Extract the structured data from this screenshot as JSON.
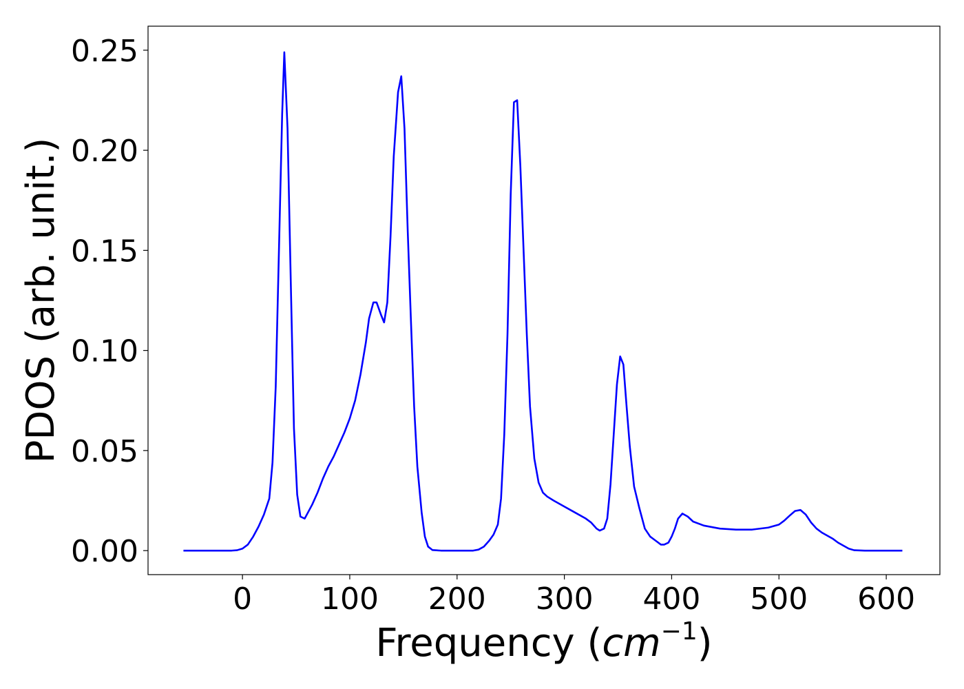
{
  "chart_data": {
    "type": "line",
    "title": "",
    "xlabel_main": "Frequency (",
    "xlabel_unit": "cm",
    "xlabel_exp": "−1",
    "xlabel_close": ")",
    "ylabel": "PDOS (arb. unit.)",
    "xlim": [
      -88,
      650
    ],
    "ylim": [
      -0.012,
      0.262
    ],
    "xticks": [
      0,
      100,
      200,
      300,
      400,
      500,
      600
    ],
    "xtick_labels": [
      "0",
      "100",
      "200",
      "300",
      "400",
      "500",
      "600"
    ],
    "yticks": [
      0.0,
      0.05,
      0.1,
      0.15,
      0.2,
      0.25
    ],
    "ytick_labels": [
      "0.00",
      "0.05",
      "0.10",
      "0.15",
      "0.20",
      "0.25"
    ],
    "grid": false,
    "legend": "none",
    "series": [
      {
        "color": "#0000ff",
        "x": [
          -55,
          -20,
          -10,
          -5,
          0,
          5,
          10,
          15,
          20,
          25,
          28,
          31,
          34,
          37,
          39,
          42,
          45,
          48,
          51,
          54,
          58,
          61,
          65,
          70,
          75,
          80,
          85,
          90,
          95,
          100,
          105,
          110,
          115,
          118,
          122,
          125,
          129,
          132,
          135,
          138,
          141,
          145,
          148,
          151,
          154,
          157,
          160,
          163,
          167,
          170,
          173,
          177,
          185,
          200,
          215,
          220,
          225,
          230,
          234,
          238,
          241,
          244,
          247,
          250,
          253,
          256,
          259,
          262,
          265,
          268,
          272,
          276,
          280,
          284,
          290,
          300,
          310,
          320,
          325,
          330,
          333,
          337,
          340,
          343,
          346,
          349,
          352,
          355,
          358,
          361,
          365,
          370,
          375,
          380,
          385,
          390,
          393,
          397,
          400,
          403,
          406,
          410,
          415,
          420,
          430,
          445,
          460,
          475,
          490,
          500,
          505,
          510,
          515,
          520,
          525,
          530,
          535,
          540,
          550,
          555,
          560,
          565,
          570,
          580,
          600,
          615
        ],
        "y": [
          0.0,
          0.0,
          0.0,
          0.0002,
          0.001,
          0.003,
          0.007,
          0.012,
          0.018,
          0.026,
          0.044,
          0.082,
          0.15,
          0.218,
          0.249,
          0.211,
          0.135,
          0.061,
          0.028,
          0.017,
          0.016,
          0.019,
          0.023,
          0.029,
          0.036,
          0.042,
          0.047,
          0.053,
          0.059,
          0.066,
          0.075,
          0.088,
          0.104,
          0.116,
          0.124,
          0.124,
          0.118,
          0.114,
          0.124,
          0.157,
          0.197,
          0.229,
          0.237,
          0.211,
          0.16,
          0.115,
          0.072,
          0.042,
          0.019,
          0.007,
          0.002,
          0.0003,
          0.0,
          0.0,
          0.0,
          0.0005,
          0.002,
          0.005,
          0.008,
          0.013,
          0.026,
          0.058,
          0.108,
          0.178,
          0.224,
          0.225,
          0.192,
          0.15,
          0.108,
          0.072,
          0.046,
          0.034,
          0.029,
          0.027,
          0.025,
          0.022,
          0.019,
          0.016,
          0.014,
          0.011,
          0.01,
          0.011,
          0.016,
          0.033,
          0.058,
          0.083,
          0.097,
          0.093,
          0.072,
          0.052,
          0.032,
          0.021,
          0.011,
          0.007,
          0.005,
          0.003,
          0.003,
          0.004,
          0.007,
          0.011,
          0.016,
          0.0185,
          0.017,
          0.0145,
          0.0125,
          0.011,
          0.0105,
          0.0105,
          0.0115,
          0.013,
          0.015,
          0.0175,
          0.0198,
          0.0203,
          0.018,
          0.014,
          0.011,
          0.009,
          0.006,
          0.004,
          0.0025,
          0.001,
          0.0002,
          0.0,
          0.0,
          0.0
        ]
      }
    ]
  }
}
